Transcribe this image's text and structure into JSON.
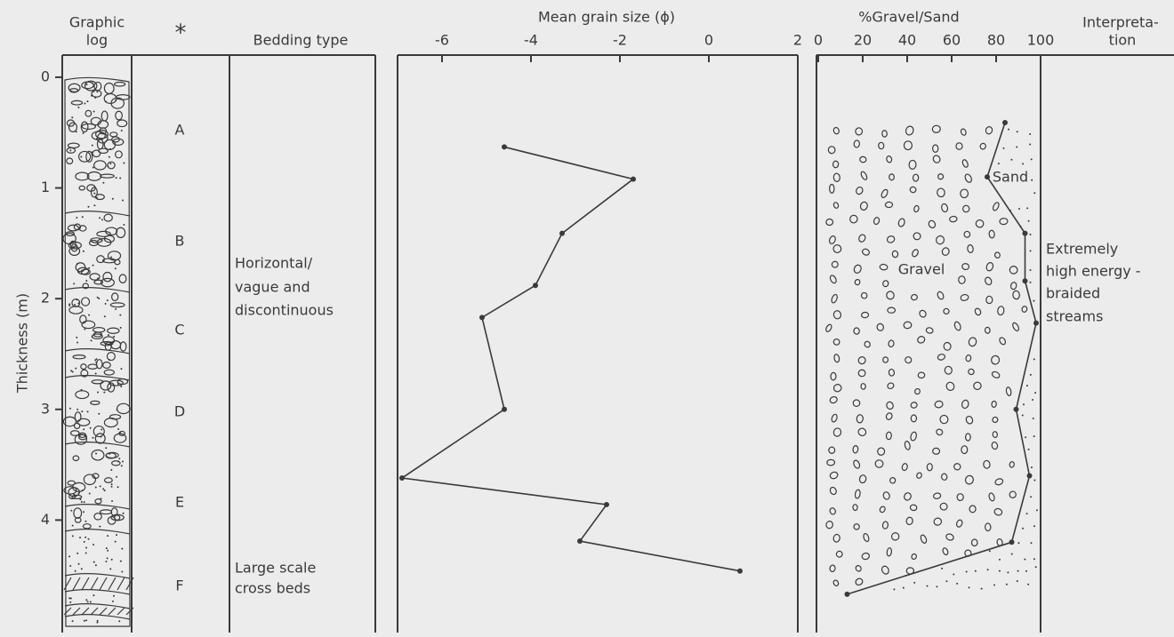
{
  "thickness_axis": {
    "label": "Thickness (m)",
    "ylim": [
      -0.2,
      5.0
    ],
    "yticks": [
      0,
      1,
      2,
      3,
      4
    ]
  },
  "graphic_log": {
    "header": [
      "Graphic",
      "log"
    ]
  },
  "beds": {
    "header": "*",
    "labels": [
      "A",
      "B",
      "C",
      "D",
      "E",
      "F"
    ]
  },
  "bedding": {
    "header": "Bedding type",
    "notes": [
      [
        "Horizontal/",
        "vague and",
        "discontinuous"
      ],
      [
        "Large scale",
        "cross beds"
      ]
    ]
  },
  "interpretation": {
    "header": [
      "Interpreta-",
      "tion"
    ],
    "text": [
      "Extremely",
      "high energy -",
      "braided",
      "streams"
    ]
  },
  "chart_data": [
    {
      "type": "line",
      "title": "Mean grain size (ϕ)",
      "color": "#3a3a3a",
      "xlim": [
        -7,
        2
      ],
      "xticks": [
        -6,
        -4,
        -2,
        0,
        2
      ],
      "y": [
        0.63,
        0.92,
        1.41,
        1.88,
        2.17,
        3.0,
        3.62,
        3.86,
        4.19,
        4.46
      ],
      "values": [
        -4.6,
        -1.7,
        -3.3,
        -3.9,
        -5.1,
        -4.6,
        -6.9,
        -2.3,
        -2.9,
        0.7
      ]
    },
    {
      "type": "line",
      "title": "%Gravel/Sand",
      "color": "#3a3a3a",
      "xlim": [
        0,
        100
      ],
      "xticks": [
        0,
        20,
        40,
        60,
        80,
        100
      ],
      "y": [
        0.41,
        0.9,
        1.41,
        1.84,
        2.22,
        3.0,
        3.6,
        4.2,
        4.67
      ],
      "values": [
        84,
        76,
        93,
        93,
        98,
        89,
        95,
        87,
        13
      ],
      "annotations": [
        "Gravel",
        "Sand"
      ]
    }
  ]
}
